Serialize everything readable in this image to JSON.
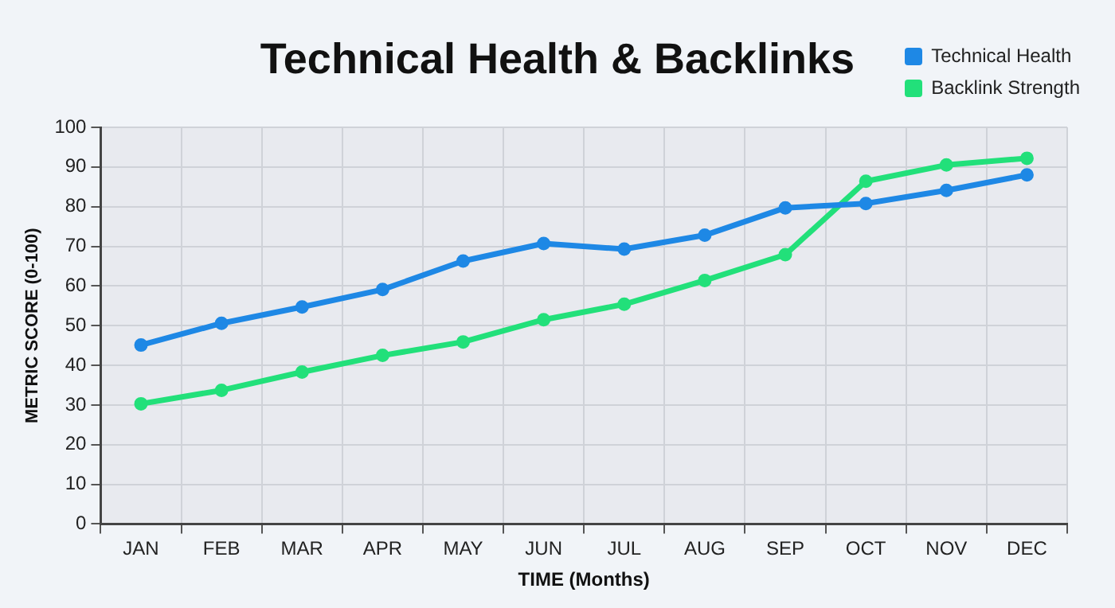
{
  "chart_data": {
    "type": "line",
    "title": "Technical Health & Backlinks",
    "xlabel": "TIME (Months)",
    "ylabel": "METRIC SCORE (0-100)",
    "categories": [
      "JAN",
      "FEB",
      "MAR",
      "APR",
      "MAY",
      "JUN",
      "JUL",
      "AUG",
      "SEP",
      "OCT",
      "NOV",
      "DEC"
    ],
    "series": [
      {
        "name": "Technical Health",
        "color": "#1e88e5",
        "values": [
          45.1,
          50.6,
          54.7,
          59.1,
          66.3,
          70.7,
          69.3,
          72.8,
          79.7,
          80.8,
          84.1,
          88
        ]
      },
      {
        "name": "Backlink Strength",
        "color": "#22e07a",
        "values": [
          30.3,
          33.7,
          38.3,
          42.5,
          45.9,
          51.5,
          55.4,
          61.4,
          67.9,
          86.4,
          90.5,
          92.2
        ]
      }
    ],
    "ylim": [
      0,
      100
    ],
    "yticks": [
      0,
      10,
      20,
      30,
      40,
      50,
      60,
      70,
      80,
      90,
      100
    ],
    "grid": true,
    "legend": "top right",
    "marker": "circle",
    "line_style": "solid"
  }
}
